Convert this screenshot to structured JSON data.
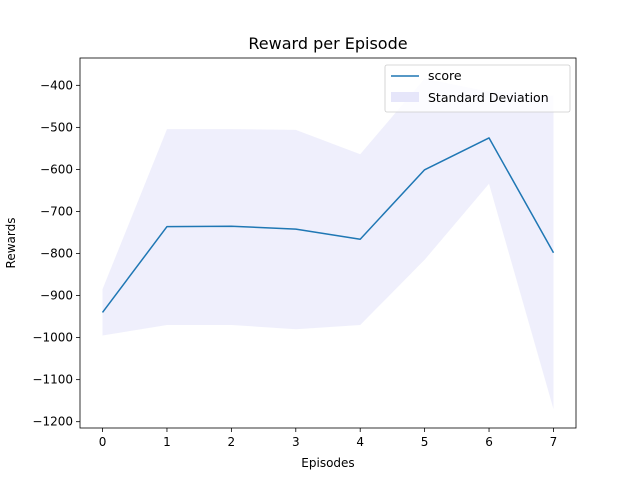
{
  "chart_data": {
    "type": "line",
    "title": "Reward per Episode",
    "xlabel": "Episodes",
    "ylabel": "Rewards",
    "xlim": [
      -0.35,
      7.35
    ],
    "ylim": [
      -1215,
      -335
    ],
    "x_ticks": [
      0,
      1,
      2,
      3,
      4,
      5,
      6,
      7
    ],
    "x_tick_labels": [
      "0",
      "1",
      "2",
      "3",
      "4",
      "5",
      "6",
      "7"
    ],
    "y_ticks": [
      -400,
      -500,
      -600,
      -700,
      -800,
      -900,
      -1000,
      -1100,
      -1200
    ],
    "y_tick_labels": [
      "−400",
      "−500",
      "−600",
      "−700",
      "−800",
      "−900",
      "−1000",
      "−1100",
      "−1200"
    ],
    "grid": false,
    "legend_position": "top-right",
    "series": [
      {
        "name": "score",
        "x": [
          0,
          1,
          2,
          3,
          4,
          5,
          6,
          7
        ],
        "y": [
          -940,
          -736,
          -735,
          -742,
          -766,
          -601,
          -525,
          -798
        ],
        "color": "#1f77b4"
      }
    ],
    "band": {
      "name": "Standard Deviation",
      "x": [
        0,
        1,
        2,
        3,
        4,
        5,
        6,
        7
      ],
      "upper": [
        -885,
        -504,
        -504,
        -506,
        -564,
        -384,
        -415,
        -425
      ],
      "lower": [
        -995,
        -970,
        -970,
        -980,
        -970,
        -815,
        -634,
        -1170
      ],
      "color": "#e6e6fa"
    }
  }
}
